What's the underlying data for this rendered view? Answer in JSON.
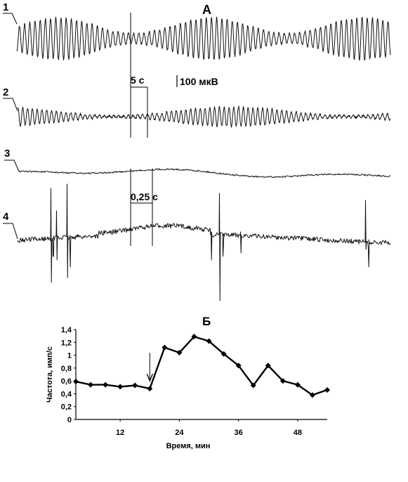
{
  "panel_a": {
    "label": "А",
    "trace_labels": [
      "1",
      "2",
      "3",
      "4"
    ],
    "scale_time_long": "5 с",
    "scale_amplitude": "100 мкВ",
    "scale_time_short": "0,25 с"
  },
  "chart_data": {
    "type": "line",
    "title": "Б",
    "xlabel": "Время, мин",
    "ylabel": "Частота, имп/с",
    "x_ticks": [
      "12",
      "24",
      "36",
      "48"
    ],
    "y_ticks": [
      "0",
      "0,2",
      "0,4",
      "0,6",
      "0,8",
      "1",
      "1,2",
      "1,4"
    ],
    "xlim": [
      3,
      54
    ],
    "ylim": [
      0,
      1.4
    ],
    "marker": "diamond",
    "arrow_at_x": 18,
    "x": [
      3,
      6,
      9,
      12,
      15,
      18,
      21,
      24,
      27,
      30,
      33,
      36,
      39,
      42,
      45,
      48,
      51,
      54
    ],
    "values": [
      0.59,
      0.54,
      0.54,
      0.51,
      0.53,
      0.48,
      1.12,
      1.04,
      1.29,
      1.22,
      1.02,
      0.84,
      0.53,
      0.84,
      0.6,
      0.54,
      0.38,
      0.46
    ]
  }
}
